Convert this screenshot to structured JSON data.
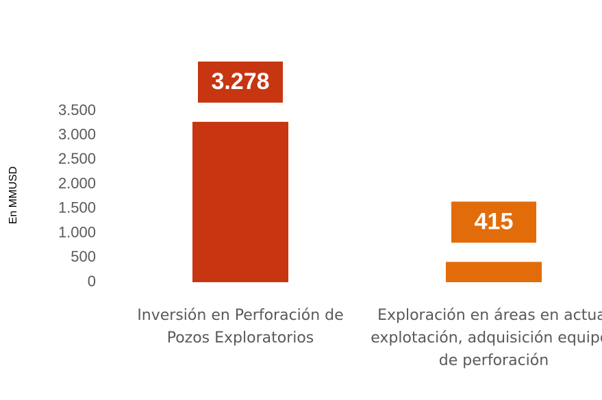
{
  "chart_data": {
    "type": "bar",
    "y_label": "En MMUSD",
    "categories": [
      "Inversión en Perforación de Pozos Exploratorios",
      "Exploración en áreas en actual explotación, adquisición equipos de perforación"
    ],
    "values": [
      3278,
      415
    ],
    "value_labels": [
      "3.278",
      "415"
    ],
    "colors": [
      "#c73511",
      "#e36c0a"
    ],
    "ylim": [
      0,
      3500
    ],
    "yticks": [
      0,
      {
        "value": 500,
        "label": "500"
      },
      {
        "value": 1000,
        "label": "1.000"
      },
      {
        "value": 1500,
        "label": "1.500"
      },
      {
        "value": 2000,
        "label": "2.000"
      },
      {
        "value": 2500,
        "label": "2.500"
      },
      {
        "value": 3000,
        "label": "3.000"
      },
      {
        "value": 3500,
        "label": "3.500"
      }
    ],
    "grid": false
  }
}
